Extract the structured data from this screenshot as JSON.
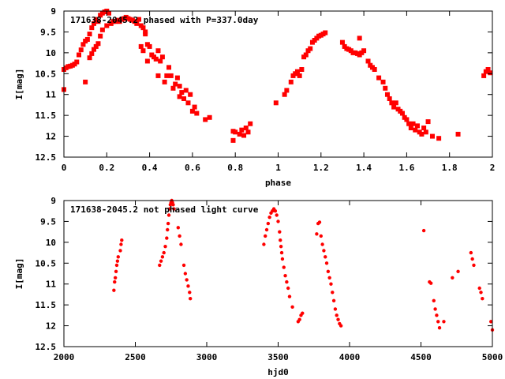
{
  "colors": {
    "series": "#ff0000",
    "frame": "#000000",
    "background": "#ffffff"
  },
  "chart_data": [
    {
      "type": "scatter",
      "title": "171638-2045.2 phased with P=337.0day",
      "xlabel": "phase",
      "ylabel": "I[mag]",
      "xlim": [
        0,
        2
      ],
      "ylim": [
        12.5,
        9
      ],
      "y_inverted": true,
      "xticks": [
        "0",
        "0.2",
        "0.4",
        "0.6",
        "0.8",
        "1",
        "1.2",
        "1.4",
        "1.6",
        "1.8",
        "2"
      ],
      "yticks": [
        "9",
        "9.5",
        "10",
        "10.5",
        "11",
        "11.5",
        "12",
        "12.5"
      ],
      "grid": false,
      "marker": "filled-square",
      "series": [
        {
          "points": [
            [
              0.0,
              10.88
            ],
            [
              0.0,
              10.4
            ],
            [
              0.01,
              10.36
            ],
            [
              0.02,
              10.33
            ],
            [
              0.03,
              10.32
            ],
            [
              0.04,
              10.3
            ],
            [
              0.05,
              10.27
            ],
            [
              0.06,
              10.22
            ],
            [
              0.07,
              10.05
            ],
            [
              0.08,
              9.93
            ],
            [
              0.09,
              9.8
            ],
            [
              0.1,
              9.72
            ],
            [
              0.1,
              10.7
            ],
            [
              0.11,
              9.68
            ],
            [
              0.12,
              9.55
            ],
            [
              0.12,
              10.12
            ],
            [
              0.13,
              9.4
            ],
            [
              0.13,
              10.02
            ],
            [
              0.14,
              9.3
            ],
            [
              0.14,
              9.92
            ],
            [
              0.15,
              9.2
            ],
            [
              0.15,
              9.85
            ],
            [
              0.16,
              9.25
            ],
            [
              0.16,
              9.78
            ],
            [
              0.17,
              9.1
            ],
            [
              0.17,
              9.6
            ],
            [
              0.18,
              9.05
            ],
            [
              0.18,
              9.45
            ],
            [
              0.19,
              9.02
            ],
            [
              0.2,
              9.0
            ],
            [
              0.2,
              9.35
            ],
            [
              0.21,
              9.05
            ],
            [
              0.22,
              9.3
            ],
            [
              0.23,
              9.25
            ],
            [
              0.24,
              9.25
            ],
            [
              0.25,
              9.22
            ],
            [
              0.26,
              9.25
            ],
            [
              0.27,
              9.2
            ],
            [
              0.28,
              9.18
            ],
            [
              0.29,
              9.15
            ],
            [
              0.3,
              9.18
            ],
            [
              0.31,
              9.2
            ],
            [
              0.32,
              9.22
            ],
            [
              0.33,
              9.25
            ],
            [
              0.34,
              9.3
            ],
            [
              0.35,
              9.2
            ],
            [
              0.36,
              9.35
            ],
            [
              0.36,
              9.85
            ],
            [
              0.37,
              9.4
            ],
            [
              0.37,
              9.95
            ],
            [
              0.38,
              9.5
            ],
            [
              0.38,
              9.55
            ],
            [
              0.39,
              9.8
            ],
            [
              0.39,
              10.2
            ],
            [
              0.4,
              9.85
            ],
            [
              0.41,
              10.05
            ],
            [
              0.42,
              10.1
            ],
            [
              0.43,
              10.15
            ],
            [
              0.44,
              9.95
            ],
            [
              0.44,
              10.55
            ],
            [
              0.45,
              10.2
            ],
            [
              0.46,
              10.1
            ],
            [
              0.47,
              10.7
            ],
            [
              0.48,
              10.55
            ],
            [
              0.49,
              10.35
            ],
            [
              0.5,
              10.55
            ],
            [
              0.51,
              10.85
            ],
            [
              0.52,
              10.75
            ],
            [
              0.53,
              10.6
            ],
            [
              0.54,
              10.8
            ],
            [
              0.54,
              11.05
            ],
            [
              0.55,
              10.95
            ],
            [
              0.56,
              11.1
            ],
            [
              0.57,
              10.9
            ],
            [
              0.58,
              11.2
            ],
            [
              0.59,
              11.0
            ],
            [
              0.6,
              11.4
            ],
            [
              0.61,
              11.3
            ],
            [
              0.62,
              11.45
            ],
            [
              0.66,
              11.6
            ],
            [
              0.68,
              11.55
            ],
            [
              0.79,
              11.88
            ],
            [
              0.79,
              12.1
            ],
            [
              0.8,
              11.9
            ],
            [
              0.82,
              11.95
            ],
            [
              0.83,
              11.85
            ],
            [
              0.84,
              11.98
            ],
            [
              0.85,
              11.8
            ],
            [
              0.86,
              11.9
            ],
            [
              0.87,
              11.7
            ],
            [
              0.99,
              11.2
            ],
            [
              1.03,
              11.0
            ],
            [
              1.04,
              10.9
            ],
            [
              1.06,
              10.7
            ],
            [
              1.07,
              10.55
            ],
            [
              1.08,
              10.5
            ],
            [
              1.09,
              10.45
            ],
            [
              1.1,
              10.55
            ],
            [
              1.11,
              10.4
            ],
            [
              1.12,
              10.1
            ],
            [
              1.13,
              10.05
            ],
            [
              1.14,
              9.95
            ],
            [
              1.15,
              9.9
            ],
            [
              1.16,
              9.75
            ],
            [
              1.17,
              9.7
            ],
            [
              1.18,
              9.65
            ],
            [
              1.19,
              9.6
            ],
            [
              1.2,
              9.58
            ],
            [
              1.21,
              9.55
            ],
            [
              1.22,
              9.52
            ],
            [
              1.3,
              9.75
            ],
            [
              1.31,
              9.85
            ],
            [
              1.32,
              9.9
            ],
            [
              1.33,
              9.92
            ],
            [
              1.34,
              9.95
            ],
            [
              1.35,
              10.0
            ],
            [
              1.36,
              10.0
            ],
            [
              1.37,
              10.02
            ],
            [
              1.38,
              10.05
            ],
            [
              1.39,
              10.0
            ],
            [
              1.38,
              9.65
            ],
            [
              1.4,
              9.95
            ],
            [
              1.42,
              10.2
            ],
            [
              1.43,
              10.3
            ],
            [
              1.44,
              10.35
            ],
            [
              1.45,
              10.4
            ],
            [
              1.47,
              10.6
            ],
            [
              1.49,
              10.7
            ],
            [
              1.5,
              10.85
            ],
            [
              1.51,
              11.0
            ],
            [
              1.52,
              11.1
            ],
            [
              1.53,
              11.2
            ],
            [
              1.54,
              11.3
            ],
            [
              1.55,
              11.2
            ],
            [
              1.56,
              11.35
            ],
            [
              1.57,
              11.4
            ],
            [
              1.58,
              11.45
            ],
            [
              1.59,
              11.55
            ],
            [
              1.6,
              11.6
            ],
            [
              1.61,
              11.7
            ],
            [
              1.62,
              11.8
            ],
            [
              1.63,
              11.7
            ],
            [
              1.64,
              11.85
            ],
            [
              1.65,
              11.75
            ],
            [
              1.66,
              11.9
            ],
            [
              1.67,
              11.95
            ],
            [
              1.68,
              11.8
            ],
            [
              1.69,
              11.9
            ],
            [
              1.7,
              11.65
            ],
            [
              1.72,
              12.0
            ],
            [
              1.75,
              12.05
            ],
            [
              1.84,
              11.95
            ],
            [
              1.96,
              10.55
            ],
            [
              1.97,
              10.45
            ],
            [
              1.98,
              10.4
            ],
            [
              1.99,
              10.48
            ]
          ]
        }
      ]
    },
    {
      "type": "scatter",
      "title": "171638-2045.2 not phased light curve",
      "xlabel": "hjd0",
      "ylabel": "I[mag]",
      "xlim": [
        2000,
        5000
      ],
      "ylim": [
        12.5,
        9
      ],
      "y_inverted": true,
      "xticks": [
        "2000",
        "2500",
        "3000",
        "3500",
        "4000",
        "4500",
        "5000"
      ],
      "yticks": [
        "9",
        "9.5",
        "10",
        "10.5",
        "11",
        "11.5",
        "12",
        "12.5"
      ],
      "grid": false,
      "marker": "filled-dot",
      "series": [
        {
          "points": [
            [
              2350,
              11.15
            ],
            [
              2355,
              10.95
            ],
            [
              2360,
              10.85
            ],
            [
              2365,
              10.7
            ],
            [
              2370,
              10.55
            ],
            [
              2375,
              10.45
            ],
            [
              2380,
              10.35
            ],
            [
              2395,
              10.2
            ],
            [
              2400,
              10.05
            ],
            [
              2405,
              9.95
            ],
            [
              2670,
              10.55
            ],
            [
              2680,
              10.45
            ],
            [
              2690,
              10.35
            ],
            [
              2700,
              10.25
            ],
            [
              2710,
              10.1
            ],
            [
              2720,
              9.9
            ],
            [
              2725,
              9.7
            ],
            [
              2730,
              9.55
            ],
            [
              2735,
              9.35
            ],
            [
              2740,
              9.2
            ],
            [
              2745,
              9.1
            ],
            [
              2750,
              9.05
            ],
            [
              2755,
              9.0
            ],
            [
              2760,
              9.05
            ],
            [
              2765,
              9.1
            ],
            [
              2770,
              9.2
            ],
            [
              2800,
              9.65
            ],
            [
              2810,
              9.85
            ],
            [
              2820,
              10.05
            ],
            [
              2840,
              10.55
            ],
            [
              2850,
              10.75
            ],
            [
              2860,
              10.9
            ],
            [
              2870,
              11.05
            ],
            [
              2880,
              11.2
            ],
            [
              2885,
              11.35
            ],
            [
              3400,
              10.05
            ],
            [
              3410,
              9.85
            ],
            [
              3420,
              9.7
            ],
            [
              3430,
              9.55
            ],
            [
              3440,
              9.4
            ],
            [
              3450,
              9.3
            ],
            [
              3460,
              9.25
            ],
            [
              3470,
              9.2
            ],
            [
              3480,
              9.25
            ],
            [
              3490,
              9.35
            ],
            [
              3500,
              9.5
            ],
            [
              3510,
              9.75
            ],
            [
              3515,
              9.95
            ],
            [
              3520,
              10.1
            ],
            [
              3525,
              10.25
            ],
            [
              3530,
              10.4
            ],
            [
              3540,
              10.6
            ],
            [
              3550,
              10.8
            ],
            [
              3560,
              10.95
            ],
            [
              3570,
              11.1
            ],
            [
              3580,
              11.3
            ],
            [
              3600,
              11.55
            ],
            [
              3640,
              11.9
            ],
            [
              3650,
              11.85
            ],
            [
              3660,
              11.75
            ],
            [
              3670,
              11.7
            ],
            [
              3770,
              9.8
            ],
            [
              3780,
              9.55
            ],
            [
              3790,
              9.52
            ],
            [
              3800,
              9.85
            ],
            [
              3810,
              10.05
            ],
            [
              3820,
              10.2
            ],
            [
              3830,
              10.35
            ],
            [
              3840,
              10.5
            ],
            [
              3850,
              10.7
            ],
            [
              3860,
              10.85
            ],
            [
              3870,
              11.0
            ],
            [
              3880,
              11.2
            ],
            [
              3890,
              11.4
            ],
            [
              3900,
              11.6
            ],
            [
              3910,
              11.75
            ],
            [
              3920,
              11.85
            ],
            [
              3930,
              11.95
            ],
            [
              3940,
              12.0
            ],
            [
              4520,
              9.72
            ],
            [
              4560,
              10.95
            ],
            [
              4570,
              10.98
            ],
            [
              4590,
              11.4
            ],
            [
              4600,
              11.6
            ],
            [
              4610,
              11.75
            ],
            [
              4620,
              11.9
            ],
            [
              4630,
              12.05
            ],
            [
              4660,
              11.9
            ],
            [
              4720,
              10.85
            ],
            [
              4760,
              10.7
            ],
            [
              4850,
              10.25
            ],
            [
              4860,
              10.4
            ],
            [
              4870,
              10.55
            ],
            [
              4910,
              11.1
            ],
            [
              4920,
              11.2
            ],
            [
              4930,
              11.35
            ],
            [
              4990,
              11.9
            ],
            [
              5000,
              12.1
            ]
          ]
        }
      ]
    }
  ]
}
